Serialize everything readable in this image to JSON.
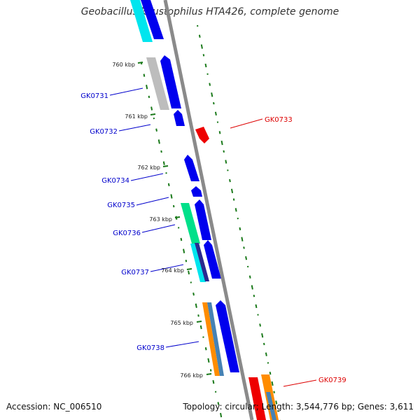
{
  "title": "Geobacillus kaustophilus HTA426, complete genome",
  "accession": "Accession: NC_006510",
  "topology": "Topology: circular; Length: 3,544,776 bp; Genes: 3,611",
  "ticks": [
    "760 kbp",
    "761 kbp",
    "762 kbp",
    "763 kbp",
    "764 kbp",
    "765 kbp",
    "766 kbp"
  ],
  "gene_labels": [
    "GK0731",
    "GK0732",
    "GK0733",
    "GK0734",
    "GK0735",
    "GK0736",
    "GK0737",
    "GK0738",
    "GK0739"
  ],
  "colors": {
    "backbone": "#8a8a8a",
    "forward_cds": "#0000ee",
    "reverse_cds": "#ee0000",
    "label_forward": "#0000cc",
    "label_reverse": "#dd0000",
    "cog_cyan": "#00e5ee",
    "cog_gray": "#bdbdbd",
    "cog_teal": "#00e08a",
    "cog_orange": "#ff8c00",
    "cog_steelblue": "#4682b4",
    "cog_darkblue": "#2a2a90",
    "gc_skew": "#1b7a1b"
  }
}
